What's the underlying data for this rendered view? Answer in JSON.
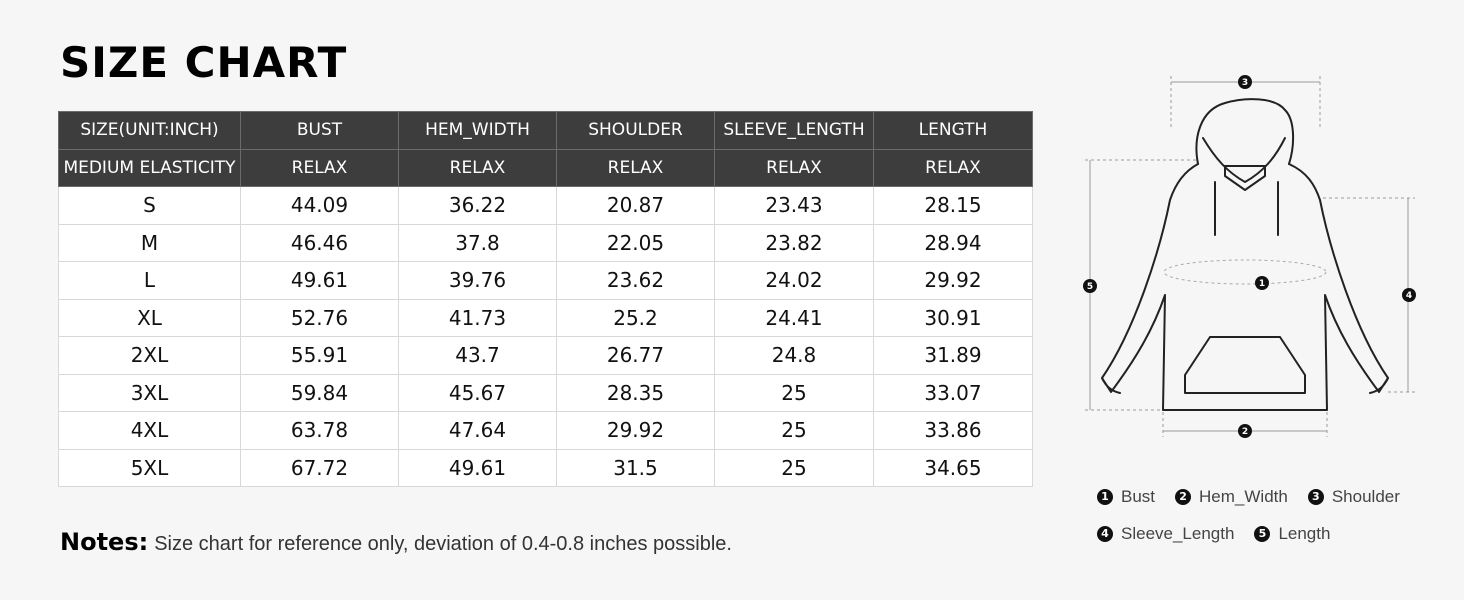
{
  "title": "SIZE CHART",
  "table": {
    "header_row1": [
      "SIZE(UNIT:INCH)",
      "BUST",
      "HEM_WIDTH",
      "SHOULDER",
      "SLEEVE_LENGTH",
      "LENGTH"
    ],
    "header_row2": [
      "MEDIUM ELASTICITY",
      "RELAX",
      "RELAX",
      "RELAX",
      "RELAX",
      "RELAX"
    ],
    "rows": [
      [
        "S",
        "44.09",
        "36.22",
        "20.87",
        "23.43",
        "28.15"
      ],
      [
        "M",
        "46.46",
        "37.8",
        "22.05",
        "23.82",
        "28.94"
      ],
      [
        "L",
        "49.61",
        "39.76",
        "23.62",
        "24.02",
        "29.92"
      ],
      [
        "XL",
        "52.76",
        "41.73",
        "25.2",
        "24.41",
        "30.91"
      ],
      [
        "2XL",
        "55.91",
        "43.7",
        "26.77",
        "24.8",
        "31.89"
      ],
      [
        "3XL",
        "59.84",
        "45.67",
        "28.35",
        "25",
        "33.07"
      ],
      [
        "4XL",
        "63.78",
        "47.64",
        "29.92",
        "25",
        "33.86"
      ],
      [
        "5XL",
        "67.72",
        "49.61",
        "31.5",
        "25",
        "34.65"
      ]
    ]
  },
  "notes": {
    "label": "Notes:",
    "text": "Size chart for reference only, deviation of 0.4-0.8 inches possible."
  },
  "diagram": {
    "markers": [
      "1",
      "2",
      "3",
      "4",
      "5"
    ]
  },
  "legend": [
    [
      {
        "num": "1",
        "label": "Bust"
      },
      {
        "num": "2",
        "label": "Hem_Width"
      },
      {
        "num": "3",
        "label": "Shoulder"
      }
    ],
    [
      {
        "num": "4",
        "label": "Sleeve_Length"
      },
      {
        "num": "5",
        "label": "Length"
      }
    ]
  ]
}
